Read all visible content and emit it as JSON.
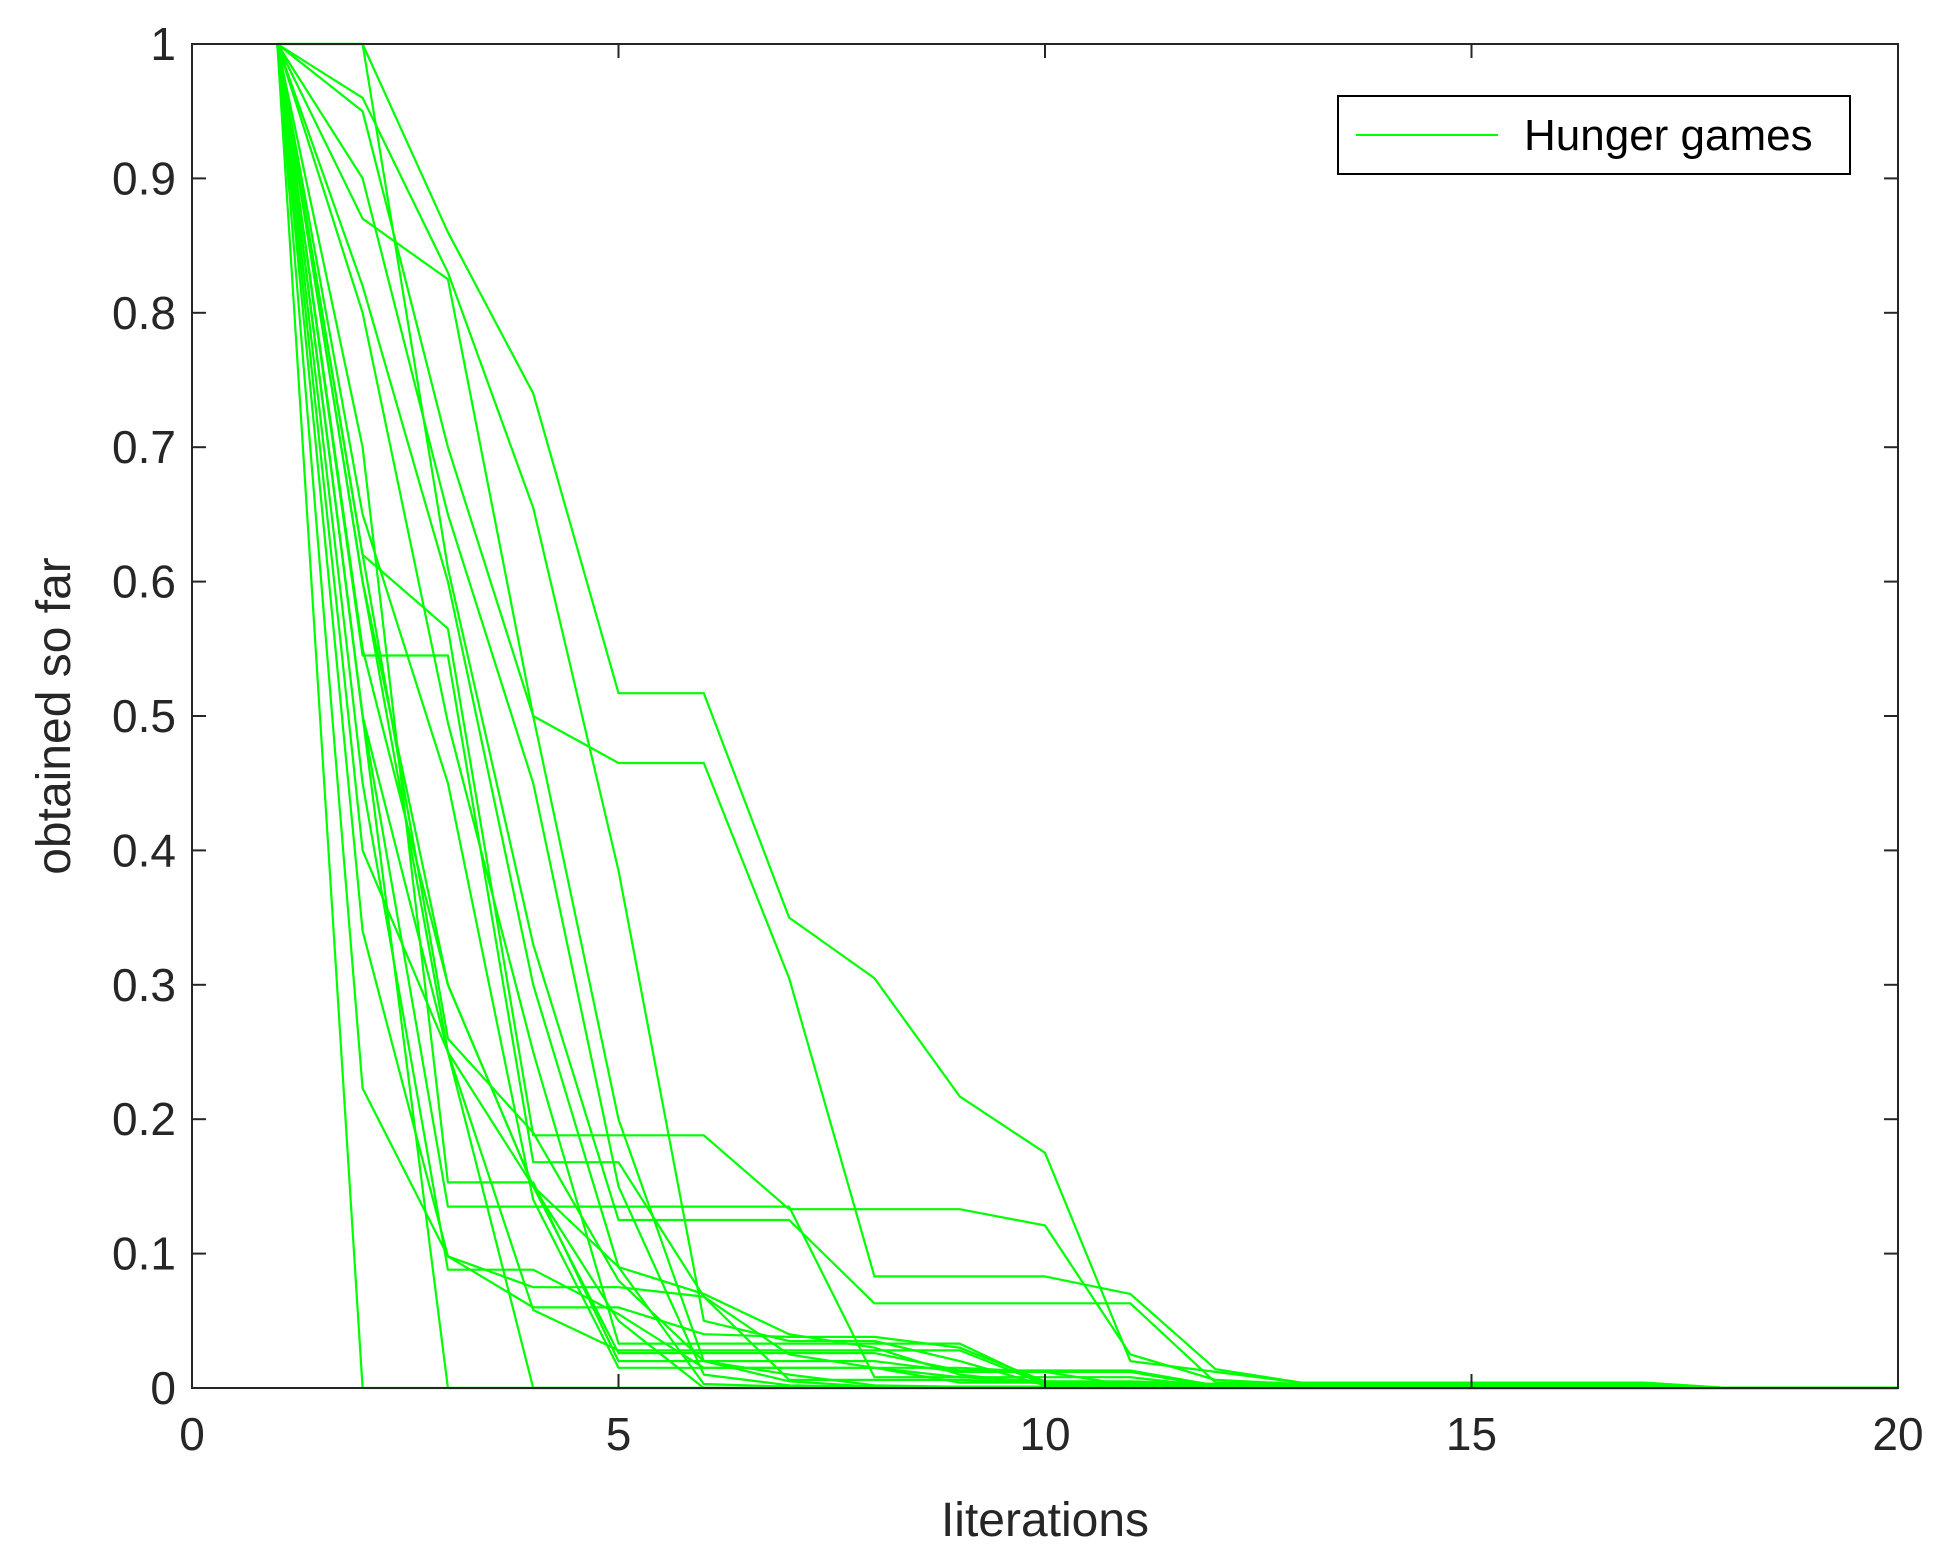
{
  "chart_data": {
    "type": "line",
    "xlabel": "Iiterations",
    "ylabel": "obtained so far",
    "xlim": [
      0,
      20
    ],
    "ylim": [
      0,
      1
    ],
    "xticks": [
      "0",
      "5",
      "10",
      "15",
      "20"
    ],
    "yticks": [
      "0",
      "0.1",
      "0.2",
      "0.3",
      "0.4",
      "0.5",
      "0.6",
      "0.7",
      "0.8",
      "0.9",
      "1"
    ],
    "grid": false,
    "legend": {
      "position": "top-right",
      "entries": [
        "Hunger games"
      ]
    },
    "line_color": "#00ff00",
    "series": [
      {
        "x": [
          1,
          2,
          3,
          4,
          5,
          6,
          7,
          8,
          9,
          10,
          11,
          12,
          13,
          14,
          15,
          16,
          17,
          18,
          19,
          20
        ],
        "y": [
          1,
          1,
          0.86,
          0.74,
          0.517,
          0.517,
          0.35,
          0.305,
          0.217,
          0.175,
          0.02,
          0.012,
          0.004,
          0.004,
          0.004,
          0.004,
          0.004,
          0,
          0,
          0
        ]
      },
      {
        "x": [
          1,
          2,
          3,
          4,
          5,
          6,
          7,
          8,
          9,
          10,
          11,
          12,
          13,
          14,
          15,
          16,
          17,
          18,
          19,
          20
        ],
        "y": [
          1,
          0.96,
          0.83,
          0.655,
          0.385,
          0.05,
          0.035,
          0.035,
          0.02,
          0.002,
          0.001,
          0,
          0,
          0,
          0,
          0,
          0,
          0,
          0,
          0
        ]
      },
      {
        "x": [
          1,
          2,
          3,
          4,
          5,
          6,
          7,
          8,
          9,
          10,
          11,
          12,
          13,
          14,
          15,
          16,
          17,
          18,
          19,
          20
        ],
        "y": [
          1,
          0.87,
          0.825,
          0.5,
          0.465,
          0.465,
          0.305,
          0.083,
          0.083,
          0.083,
          0.07,
          0.014,
          0.004,
          0.004,
          0.004,
          0.004,
          0.004,
          0,
          0,
          0
        ]
      },
      {
        "x": [
          1,
          2,
          3,
          4,
          5,
          6,
          7,
          8,
          9,
          10,
          11,
          12,
          13,
          14,
          15,
          16,
          17,
          18,
          19,
          20
        ],
        "y": [
          1,
          1,
          0.61,
          0.33,
          0.125,
          0.125,
          0.125,
          0.063,
          0.063,
          0.063,
          0.063,
          0.004,
          0.003,
          0.003,
          0.003,
          0.003,
          0.003,
          0,
          0,
          0
        ]
      },
      {
        "x": [
          1,
          2,
          3,
          4,
          5,
          6,
          7,
          8,
          9,
          10,
          11,
          12,
          13,
          14,
          15,
          16,
          17,
          18,
          19,
          20
        ],
        "y": [
          1,
          0.62,
          0.565,
          0.188,
          0.188,
          0.188,
          0.133,
          0.133,
          0.133,
          0.121,
          0.025,
          0.006,
          0.003,
          0.003,
          0.003,
          0.003,
          0.003,
          0,
          0,
          0
        ]
      },
      {
        "x": [
          1,
          2,
          3,
          4,
          5,
          6,
          7,
          8,
          9,
          10,
          11,
          12,
          13,
          14,
          15,
          16,
          17,
          18,
          19,
          20
        ],
        "y": [
          1,
          0.545,
          0.545,
          0.168,
          0.168,
          0.068,
          0.025,
          0.015,
          0.008,
          0.005,
          0.004,
          0.003,
          0.002,
          0.002,
          0.002,
          0.002,
          0.002,
          0,
          0,
          0
        ]
      },
      {
        "x": [
          1,
          2,
          3,
          4,
          5,
          6,
          7,
          8,
          9,
          10,
          11,
          12,
          13,
          14,
          15,
          16,
          17,
          18,
          19,
          20
        ],
        "y": [
          1,
          0.8,
          0.495,
          0.25,
          0.033,
          0.033,
          0.033,
          0.033,
          0.033,
          0.003,
          0.002,
          0.002,
          0.001,
          0.001,
          0.001,
          0.001,
          0.001,
          0,
          0,
          0
        ]
      },
      {
        "x": [
          1,
          2,
          3,
          4,
          5,
          6,
          7,
          8,
          9,
          10,
          11,
          12,
          13,
          14,
          15,
          16,
          17,
          18,
          19,
          20
        ],
        "y": [
          1,
          0.6,
          0.25,
          0.15,
          0.026,
          0.026,
          0.026,
          0.026,
          0.013,
          0.013,
          0.013,
          0.002,
          0.001,
          0.001,
          0.001,
          0.001,
          0.001,
          0,
          0,
          0
        ]
      },
      {
        "x": [
          1,
          2,
          3,
          4,
          5,
          6,
          7,
          8,
          9,
          10,
          11,
          12,
          13,
          14,
          15,
          16,
          17,
          18,
          19,
          20
        ],
        "y": [
          1,
          0.7,
          0.153,
          0.153,
          0.02,
          0.02,
          0.02,
          0.02,
          0.012,
          0.012,
          0.012,
          0.001,
          0.001,
          0.001,
          0.001,
          0.001,
          0.001,
          0,
          0,
          0
        ]
      },
      {
        "x": [
          1,
          2,
          3,
          4,
          5,
          6,
          7,
          8,
          9,
          10,
          11,
          12,
          13,
          14,
          15,
          16,
          17,
          18,
          19,
          20
        ],
        "y": [
          1,
          0.5,
          0.135,
          0.135,
          0.135,
          0.135,
          0.135,
          0.008,
          0.008,
          0.008,
          0.008,
          0.001,
          0.001,
          0.001,
          0.001,
          0.001,
          0.001,
          0,
          0,
          0
        ]
      },
      {
        "x": [
          1,
          2,
          3,
          4,
          5,
          6,
          7,
          8,
          9,
          10,
          11,
          12,
          13,
          14,
          15,
          16,
          17,
          18,
          19,
          20
        ],
        "y": [
          1,
          0.34,
          0.098,
          0.075,
          0.075,
          0.068,
          0.006,
          0.006,
          0.006,
          0.004,
          0.002,
          0.001,
          0.001,
          0.001,
          0.001,
          0.001,
          0.001,
          0,
          0,
          0
        ]
      },
      {
        "x": [
          1,
          2,
          3,
          4,
          5,
          6,
          7,
          8,
          9,
          10,
          11,
          12,
          13,
          14,
          15,
          16,
          17,
          18,
          19,
          20
        ],
        "y": [
          1,
          0.45,
          0.088,
          0.088,
          0.055,
          0.015,
          0.015,
          0.015,
          0.004,
          0.004,
          0.002,
          0.001,
          0.001,
          0.001,
          0.001,
          0.001,
          0.001,
          0,
          0,
          0
        ]
      },
      {
        "x": [
          1,
          2,
          3,
          4,
          5,
          6,
          7,
          8,
          9,
          10,
          11,
          12,
          13,
          14,
          15,
          16,
          17,
          18,
          19,
          20
        ],
        "y": [
          1,
          0.223,
          0.098,
          0.06,
          0.06,
          0.04,
          0.038,
          0.038,
          0.03,
          0.005,
          0.005,
          0.003,
          0.002,
          0.002,
          0.002,
          0.002,
          0.002,
          0,
          0,
          0
        ]
      },
      {
        "x": [
          1,
          2,
          3,
          4,
          5,
          6,
          7,
          8,
          9,
          10,
          11,
          12,
          13,
          14,
          15,
          16,
          17,
          18,
          19,
          20
        ],
        "y": [
          1,
          0.4,
          0.25,
          0.058,
          0.028,
          0.028,
          0.028,
          0.028,
          0.028,
          0.003,
          0.003,
          0.001,
          0.001,
          0.001,
          0.001,
          0.001,
          0.001,
          0,
          0,
          0
        ]
      },
      {
        "x": [
          1,
          2,
          3,
          4,
          5,
          6,
          7,
          8,
          9,
          10,
          11,
          12,
          13,
          14,
          15,
          16,
          17,
          18,
          19,
          20
        ],
        "y": [
          1,
          0.65,
          0.45,
          0.14,
          0.015,
          0.015,
          0.015,
          0.015,
          0.015,
          0.012,
          0.002,
          0.001,
          0.001,
          0.001,
          0.001,
          0.001,
          0.001,
          0,
          0,
          0
        ]
      },
      {
        "x": [
          1,
          2,
          3,
          4,
          5,
          6,
          7,
          8,
          9,
          10,
          11,
          12,
          13,
          14,
          15,
          16,
          17,
          18,
          19,
          20
        ],
        "y": [
          1,
          0,
          0,
          0,
          0,
          0,
          0,
          0,
          0,
          0,
          0,
          0,
          0,
          0,
          0,
          0,
          0,
          0,
          0,
          0
        ]
      },
      {
        "x": [
          1,
          2,
          3,
          4,
          5,
          6,
          7,
          8,
          9,
          10,
          11,
          12,
          13,
          14,
          15,
          16,
          17,
          18,
          19,
          20
        ],
        "y": [
          1,
          0.5,
          0,
          0,
          0,
          0,
          0,
          0,
          0,
          0,
          0,
          0,
          0,
          0,
          0,
          0,
          0,
          0,
          0,
          0
        ]
      },
      {
        "x": [
          1,
          2,
          3,
          4,
          5,
          6,
          7,
          8,
          9,
          10,
          11,
          12,
          13,
          14,
          15,
          16,
          17,
          18,
          19,
          20
        ],
        "y": [
          1,
          0.5,
          0.25,
          0,
          0,
          0,
          0,
          0,
          0,
          0,
          0,
          0,
          0,
          0,
          0,
          0,
          0,
          0,
          0,
          0
        ]
      },
      {
        "x": [
          1,
          2,
          3,
          4,
          5,
          6,
          7,
          8,
          9,
          10,
          11,
          12,
          13,
          14,
          15,
          16,
          17,
          18,
          19,
          20
        ],
        "y": [
          1,
          0.6,
          0.3,
          0.15,
          0.05,
          0,
          0,
          0,
          0,
          0,
          0,
          0,
          0,
          0,
          0,
          0,
          0,
          0,
          0,
          0
        ]
      },
      {
        "x": [
          1,
          2,
          3,
          4,
          5,
          6,
          7,
          8,
          9,
          10,
          11,
          12,
          13,
          14,
          15,
          16,
          17,
          18,
          19,
          20
        ],
        "y": [
          1,
          0.55,
          0.3,
          0.15,
          0.09,
          0.07,
          0.04,
          0.03,
          0.01,
          0.003,
          0.002,
          0.001,
          0.001,
          0.001,
          0.001,
          0.001,
          0.001,
          0,
          0,
          0
        ]
      },
      {
        "x": [
          1,
          2,
          3,
          4,
          5,
          6,
          7,
          8,
          9,
          10,
          11,
          12,
          13,
          14,
          15,
          16,
          17,
          18,
          19,
          20
        ],
        "y": [
          1,
          0.62,
          0.26,
          0.19,
          0.08,
          0.02,
          0.01,
          0.002,
          0.001,
          0.001,
          0.001,
          0.001,
          0,
          0,
          0,
          0,
          0,
          0,
          0,
          0
        ]
      },
      {
        "x": [
          1,
          2,
          3,
          4,
          5,
          6,
          7,
          8,
          9,
          10,
          11,
          12,
          13,
          14,
          15,
          16,
          17,
          18,
          19,
          20
        ],
        "y": [
          1,
          0.82,
          0.6,
          0.3,
          0.09,
          0.003,
          0.001,
          0.001,
          0.001,
          0.001,
          0.001,
          0.001,
          0,
          0,
          0,
          0,
          0,
          0,
          0,
          0
        ]
      },
      {
        "x": [
          1,
          2,
          3,
          4,
          5,
          6,
          7,
          8,
          9,
          10,
          11,
          12,
          13,
          14,
          15,
          16,
          17,
          18,
          19,
          20
        ],
        "y": [
          1,
          0.9,
          0.65,
          0.45,
          0.15,
          0.01,
          0.002,
          0.001,
          0.001,
          0.001,
          0.001,
          0,
          0,
          0,
          0,
          0,
          0,
          0,
          0,
          0
        ]
      },
      {
        "x": [
          1,
          2,
          3,
          4,
          5,
          6,
          7,
          8,
          9,
          10,
          11,
          12,
          13,
          14,
          15,
          16,
          17,
          18,
          19,
          20
        ],
        "y": [
          1,
          0.95,
          0.7,
          0.5,
          0.2,
          0.02,
          0.005,
          0.001,
          0.001,
          0.001,
          0.001,
          0,
          0,
          0,
          0,
          0,
          0,
          0,
          0,
          0
        ]
      }
    ]
  }
}
